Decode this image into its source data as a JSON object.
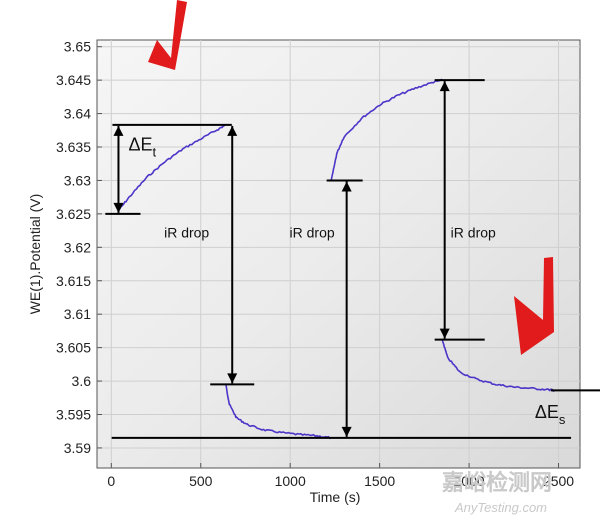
{
  "chart_data": {
    "type": "line",
    "title": "",
    "xlabel": "Time (s)",
    "ylabel": "WE(1).Potential (V)",
    "xlim": [
      -80,
      2620
    ],
    "ylim": [
      3.587,
      3.651
    ],
    "xticks": [
      0,
      500,
      1000,
      1500,
      2000,
      2500
    ],
    "yticks": [
      3.59,
      3.595,
      3.6,
      3.605,
      3.61,
      3.615,
      3.62,
      3.625,
      3.63,
      3.635,
      3.64,
      3.645,
      3.65
    ],
    "ytick_labels": [
      "3.59",
      "3.595",
      "3.6",
      "3.605",
      "3.61",
      "3.615",
      "3.62",
      "3.625",
      "3.63",
      "3.635",
      "3.64",
      "3.645",
      "3.65"
    ],
    "grid": true,
    "series_color": "#4b36c8",
    "series": [
      {
        "name": "",
        "segments": [
          {
            "x": [
              40,
              100,
              200,
              300,
              400,
              500,
              600,
              640
            ],
            "y": [
              3.6255,
              3.6275,
              3.6305,
              3.6328,
              3.6347,
              3.6362,
              3.6377,
              3.6383
            ]
          },
          {
            "x": [
              640,
              660,
              700,
              760,
              850,
              950,
              1050,
              1150,
              1230
            ],
            "y": [
              3.5995,
              3.5965,
              3.5945,
              3.5935,
              3.5927,
              3.5923,
              3.592,
              3.5918,
              3.5915
            ]
          },
          {
            "x": [
              1230,
              1260,
              1300,
              1400,
              1500,
              1600,
              1700,
              1800,
              1850
            ],
            "y": [
              3.63,
              3.634,
              3.6365,
              3.6393,
              3.6413,
              3.6427,
              3.6438,
              3.6447,
              3.645
            ]
          },
          {
            "x": [
              1850,
              1880,
              1950,
              2050,
              2150,
              2250,
              2350,
              2450,
              2480
            ],
            "y": [
              3.6062,
              3.6035,
              3.6013,
              3.6002,
              3.5995,
              3.5991,
              3.5989,
              3.5987,
              3.5986
            ]
          }
        ]
      }
    ],
    "annotations": {
      "delta_et": {
        "label": "ΔE",
        "sub": "t",
        "x": 40,
        "y_from": 3.625,
        "y_to": 3.6383,
        "bar_left": 0,
        "bar_right": 640
      },
      "drop1": {
        "label": "iR drop",
        "x": 620,
        "y_from": 3.6383,
        "y_to": 3.5995
      },
      "drop2": {
        "label": "iR drop",
        "x": 1215,
        "y_from": 3.5915,
        "y_to": 3.63
      },
      "drop3": {
        "label": "iR drop",
        "x": 1830,
        "y_from": 3.645,
        "y_to": 3.6062
      },
      "delta_es": {
        "label": "ΔE",
        "sub": "s",
        "x": 2390,
        "y_from": 3.5915,
        "y_to": 3.5986
      }
    },
    "watermark": {
      "cn": "嘉峪检测网",
      "en": "AnyTesting.com"
    }
  }
}
